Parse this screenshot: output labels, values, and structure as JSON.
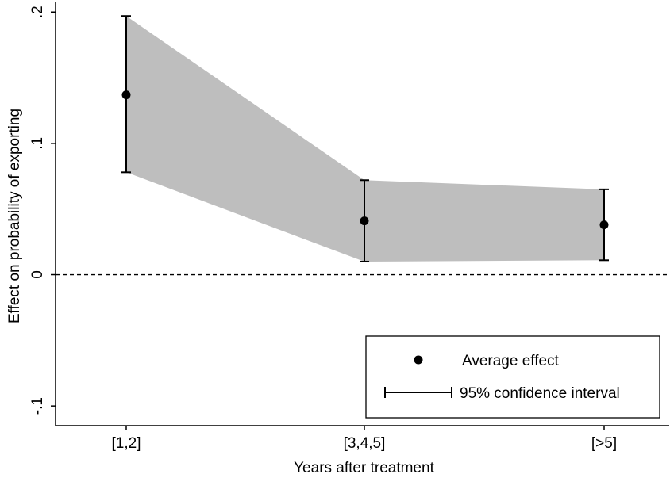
{
  "chart_data": {
    "type": "scatter",
    "title": "",
    "xlabel": "Years after treatment",
    "ylabel": "Effect on probability of exporting",
    "categories": [
      "[1,2]",
      "[3,4,5]",
      "[>5]"
    ],
    "series": [
      {
        "name": "Average effect",
        "values": [
          0.137,
          0.041,
          0.038
        ],
        "ci_lower": [
          0.078,
          0.01,
          0.011
        ],
        "ci_upper": [
          0.197,
          0.072,
          0.065
        ]
      }
    ],
    "ci_label": "95% confidence interval",
    "ylim": [
      -0.115,
      0.208
    ],
    "yticks": [
      -0.1,
      0,
      0.1,
      0.2
    ],
    "ytick_labels": [
      "-.1",
      "0",
      ".1",
      ".2"
    ],
    "reference_line": {
      "y": 0,
      "style": "dashed"
    },
    "band": "shaded confidence band between bounds",
    "grid": false,
    "legend_position": "bottom-right",
    "colors": {
      "points": "#000000",
      "band": "#bebebe",
      "errorbars": "#000000"
    }
  }
}
